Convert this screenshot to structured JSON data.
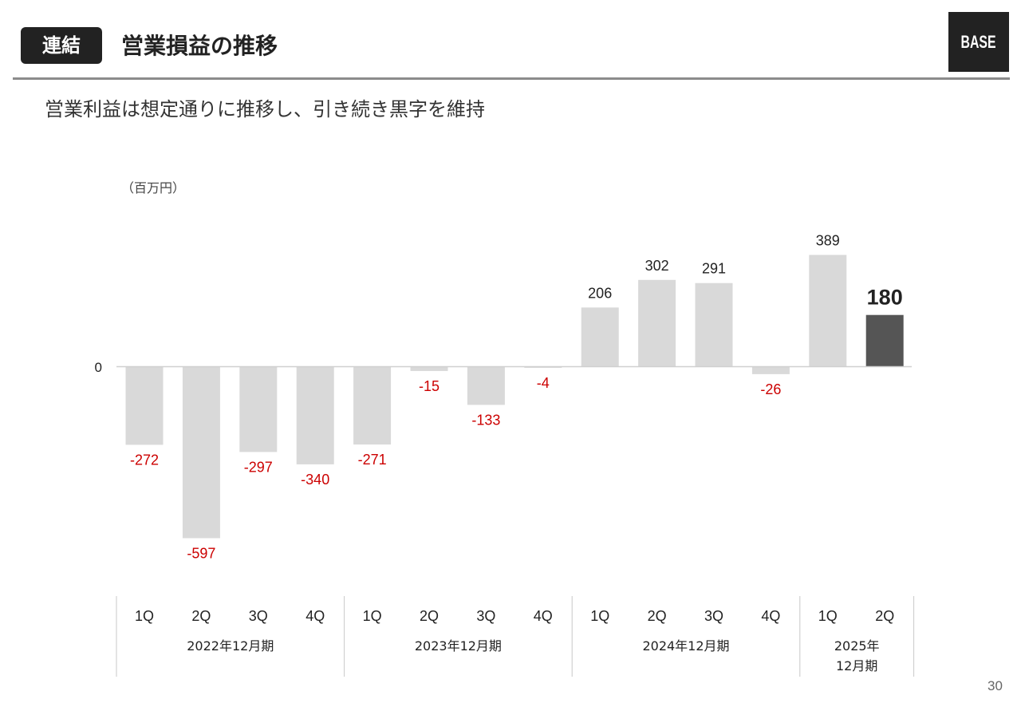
{
  "header": {
    "badge": "連結",
    "title": "営業損益の推移",
    "logo": "BASE"
  },
  "subtitle": "営業利益は想定通りに推移し、引き続き黒字を維持",
  "unit_label": "（百万円）",
  "page_number": "30",
  "colors": {
    "bar_default": "#d9d9d9",
    "bar_highlight": "#555555",
    "negative_label": "#cc0000",
    "positive_label": "#222222"
  },
  "chart_data": {
    "type": "bar",
    "zero_label": "0",
    "categories": [
      "1Q",
      "2Q",
      "3Q",
      "4Q",
      "1Q",
      "2Q",
      "3Q",
      "4Q",
      "1Q",
      "2Q",
      "3Q",
      "4Q",
      "1Q",
      "2Q"
    ],
    "values": [
      -272,
      -597,
      -297,
      -340,
      -271,
      -15,
      -133,
      -4,
      206,
      302,
      291,
      -26,
      389,
      180
    ],
    "data_labels": [
      "-272",
      "-597",
      "-297",
      "-340",
      "-271",
      "-15",
      "-133",
      "-4",
      "206",
      "302",
      "291",
      "-26",
      "389",
      "180"
    ],
    "highlight_index": 13,
    "groups": [
      {
        "label": [
          "2022年12月期"
        ],
        "span": 4
      },
      {
        "label": [
          "2023年12月期"
        ],
        "span": 4
      },
      {
        "label": [
          "2024年12月期"
        ],
        "span": 4
      },
      {
        "label": [
          "2025年",
          "12月期"
        ],
        "span": 2
      }
    ]
  }
}
